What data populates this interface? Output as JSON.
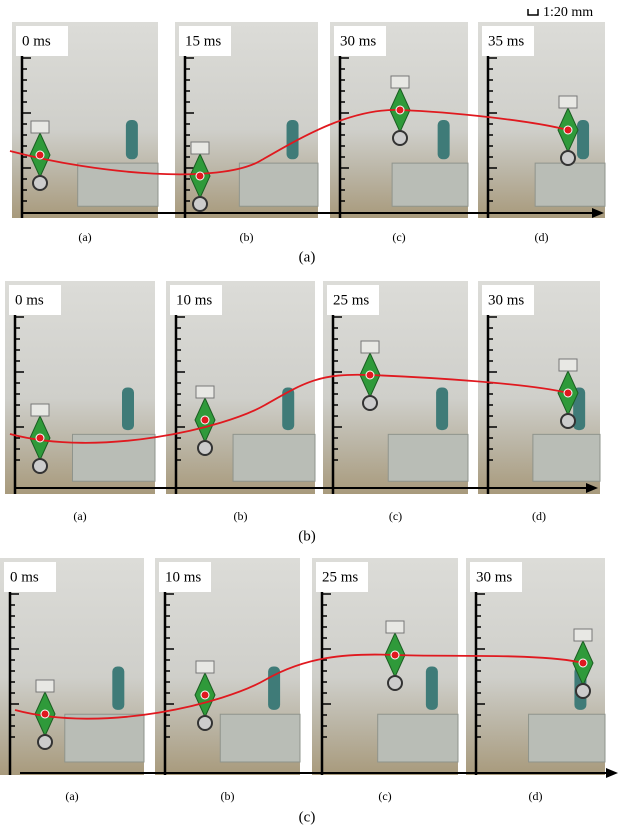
{
  "scale_label": "1:20 mm",
  "rows": [
    {
      "caption": "(a)",
      "panels": [
        {
          "time": "0 ms",
          "label": "(a)"
        },
        {
          "time": "15 ms",
          "label": "(b)"
        },
        {
          "time": "30 ms",
          "label": "(c)"
        },
        {
          "time": "35 ms",
          "label": "(d)"
        }
      ]
    },
    {
      "caption": "(b)",
      "panels": [
        {
          "time": "0 ms",
          "label": "(a)"
        },
        {
          "time": "10 ms",
          "label": "(b)"
        },
        {
          "time": "25 ms",
          "label": "(c)"
        },
        {
          "time": "30 ms",
          "label": "(d)"
        }
      ]
    },
    {
      "caption": "(c)",
      "panels": [
        {
          "time": "0 ms",
          "label": "(a)"
        },
        {
          "time": "10 ms",
          "label": "(b)"
        },
        {
          "time": "25 ms",
          "label": "(c)"
        },
        {
          "time": "30 ms",
          "label": "(d)"
        }
      ]
    }
  ]
}
